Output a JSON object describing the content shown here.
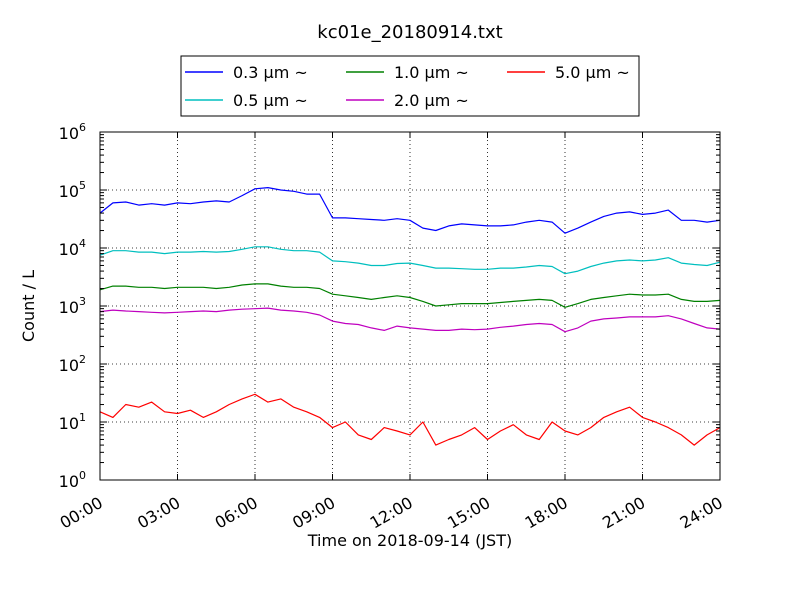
{
  "chart_data": {
    "type": "line",
    "title": "kc01e_20180914.txt",
    "xlabel": "Time on 2018-09-14 (JST)",
    "ylabel": "Count / L",
    "yscale": "log",
    "ylim": [
      1,
      1000000
    ],
    "xlim": [
      "00:00",
      "24:00"
    ],
    "grid": true,
    "legend_position": "top-center, outside plot",
    "x_ticks": [
      "00:00",
      "03:00",
      "06:00",
      "09:00",
      "12:00",
      "15:00",
      "18:00",
      "21:00",
      "24:00"
    ],
    "y_ticks": [
      {
        "base": "10",
        "exp": "0"
      },
      {
        "base": "10",
        "exp": "1"
      },
      {
        "base": "10",
        "exp": "2"
      },
      {
        "base": "10",
        "exp": "3"
      },
      {
        "base": "10",
        "exp": "4"
      },
      {
        "base": "10",
        "exp": "5"
      },
      {
        "base": "10",
        "exp": "6"
      }
    ],
    "x_hours": [
      0,
      0.5,
      1,
      1.5,
      2,
      2.5,
      3,
      3.5,
      4,
      4.5,
      5,
      5.5,
      6,
      6.5,
      7,
      7.5,
      8,
      8.5,
      9,
      9.5,
      10,
      10.5,
      11,
      11.5,
      12,
      12.5,
      13,
      13.5,
      14,
      14.5,
      15,
      15.5,
      16,
      16.5,
      17,
      17.5,
      18,
      18.5,
      19,
      19.5,
      20,
      20.5,
      21,
      21.5,
      22,
      22.5,
      23,
      23.5,
      24
    ],
    "series": [
      {
        "name": "0.3 μm ~",
        "color": "#0000ff",
        "values": [
          40000,
          60000,
          62000,
          55000,
          58000,
          55000,
          60000,
          58000,
          62000,
          65000,
          62000,
          80000,
          105000,
          110000,
          100000,
          95000,
          85000,
          85000,
          33000,
          33000,
          32000,
          31000,
          30000,
          32000,
          30000,
          22000,
          20000,
          24000,
          26000,
          25000,
          24000,
          24000,
          25000,
          28000,
          30000,
          28000,
          18000,
          22000,
          28000,
          35000,
          40000,
          42000,
          38000,
          40000,
          45000,
          30000,
          30000,
          28000,
          30000
        ]
      },
      {
        "name": "0.5 μm ~",
        "color": "#00bfbf",
        "values": [
          7500,
          9000,
          9000,
          8500,
          8500,
          8000,
          8500,
          8500,
          8700,
          8500,
          8700,
          9500,
          10500,
          10500,
          9500,
          9000,
          9000,
          8500,
          6000,
          5800,
          5500,
          5000,
          5000,
          5400,
          5500,
          5000,
          4500,
          4500,
          4400,
          4300,
          4300,
          4500,
          4500,
          4700,
          5000,
          4800,
          3600,
          4000,
          4800,
          5500,
          6000,
          6200,
          6000,
          6200,
          6800,
          5500,
          5200,
          5000,
          5700
        ]
      },
      {
        "name": "1.0 μm ~",
        "color": "#008000",
        "values": [
          1900,
          2200,
          2200,
          2100,
          2100,
          2000,
          2100,
          2100,
          2100,
          2000,
          2100,
          2300,
          2400,
          2400,
          2200,
          2100,
          2100,
          2000,
          1600,
          1500,
          1400,
          1300,
          1400,
          1500,
          1400,
          1200,
          1000,
          1050,
          1100,
          1100,
          1100,
          1150,
          1200,
          1250,
          1300,
          1250,
          950,
          1100,
          1300,
          1400,
          1500,
          1600,
          1550,
          1550,
          1600,
          1300,
          1200,
          1200,
          1250
        ]
      },
      {
        "name": "2.0 μm ~",
        "color": "#bf00bf",
        "values": [
          800,
          850,
          820,
          800,
          780,
          760,
          780,
          800,
          820,
          800,
          850,
          880,
          900,
          920,
          850,
          820,
          780,
          700,
          550,
          500,
          480,
          420,
          380,
          450,
          420,
          400,
          380,
          380,
          400,
          390,
          400,
          430,
          450,
          480,
          500,
          480,
          360,
          420,
          550,
          600,
          620,
          650,
          650,
          650,
          680,
          600,
          500,
          420,
          400
        ]
      },
      {
        "name": "5.0 μm ~",
        "color": "#ff0000",
        "values": [
          15,
          12,
          20,
          18,
          22,
          15,
          14,
          16,
          12,
          15,
          20,
          25,
          30,
          22,
          25,
          18,
          15,
          12,
          8,
          10,
          6,
          5,
          8,
          7,
          6,
          10,
          4,
          5,
          6,
          8,
          5,
          7,
          9,
          6,
          5,
          10,
          7,
          6,
          8,
          12,
          15,
          18,
          12,
          10,
          8,
          6,
          4,
          6,
          8
        ]
      }
    ]
  }
}
